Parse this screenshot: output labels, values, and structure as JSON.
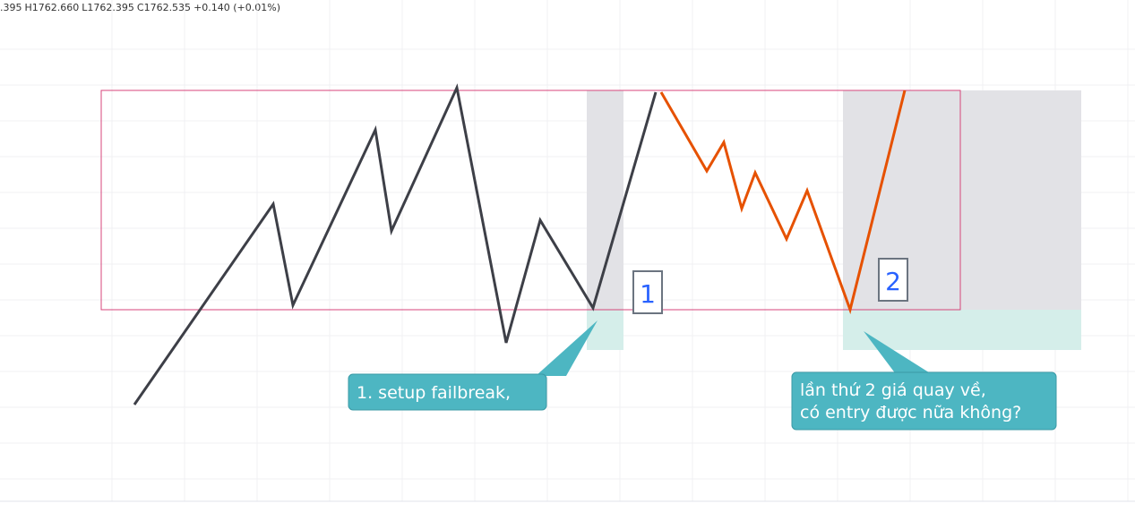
{
  "header": {
    "open": ".395",
    "high": "H1762.660",
    "low": "L1762.395",
    "close": "C1762.535",
    "change": "+0.140 (+0.01%)"
  },
  "chart_data": {
    "type": "line",
    "series": [
      {
        "color": "#3d3f47",
        "points": [
          [
            150,
            452
          ],
          [
            305,
            228
          ],
          [
            327,
            341
          ],
          [
            419,
            145
          ],
          [
            437,
            258
          ],
          [
            510,
            98
          ],
          [
            565,
            383
          ],
          [
            603,
            246
          ],
          [
            662,
            344
          ],
          [
            732,
            103
          ]
        ]
      },
      {
        "color": "#e65100",
        "points": [
          [
            738,
            103
          ],
          [
            789,
            191
          ],
          [
            808,
            159
          ],
          [
            828,
            233
          ],
          [
            843,
            193
          ],
          [
            878,
            267
          ],
          [
            901,
            213
          ],
          [
            949,
            346
          ],
          [
            1010,
            101
          ]
        ]
      }
    ],
    "box_labels": [
      "1",
      "2"
    ],
    "callouts": [
      {
        "lines": [
          "1. setup failbreak,"
        ]
      },
      {
        "lines": [
          "lần thứ 2 giá quay về,",
          "có entry được nữa không?"
        ]
      }
    ]
  },
  "colors": {
    "range_box_border": "#d7457b",
    "zone_gray": "#e2e2e6",
    "zone_teal": "#d5eeea",
    "callout_bg": "#4db6c2",
    "label_text": "#2962ff"
  }
}
